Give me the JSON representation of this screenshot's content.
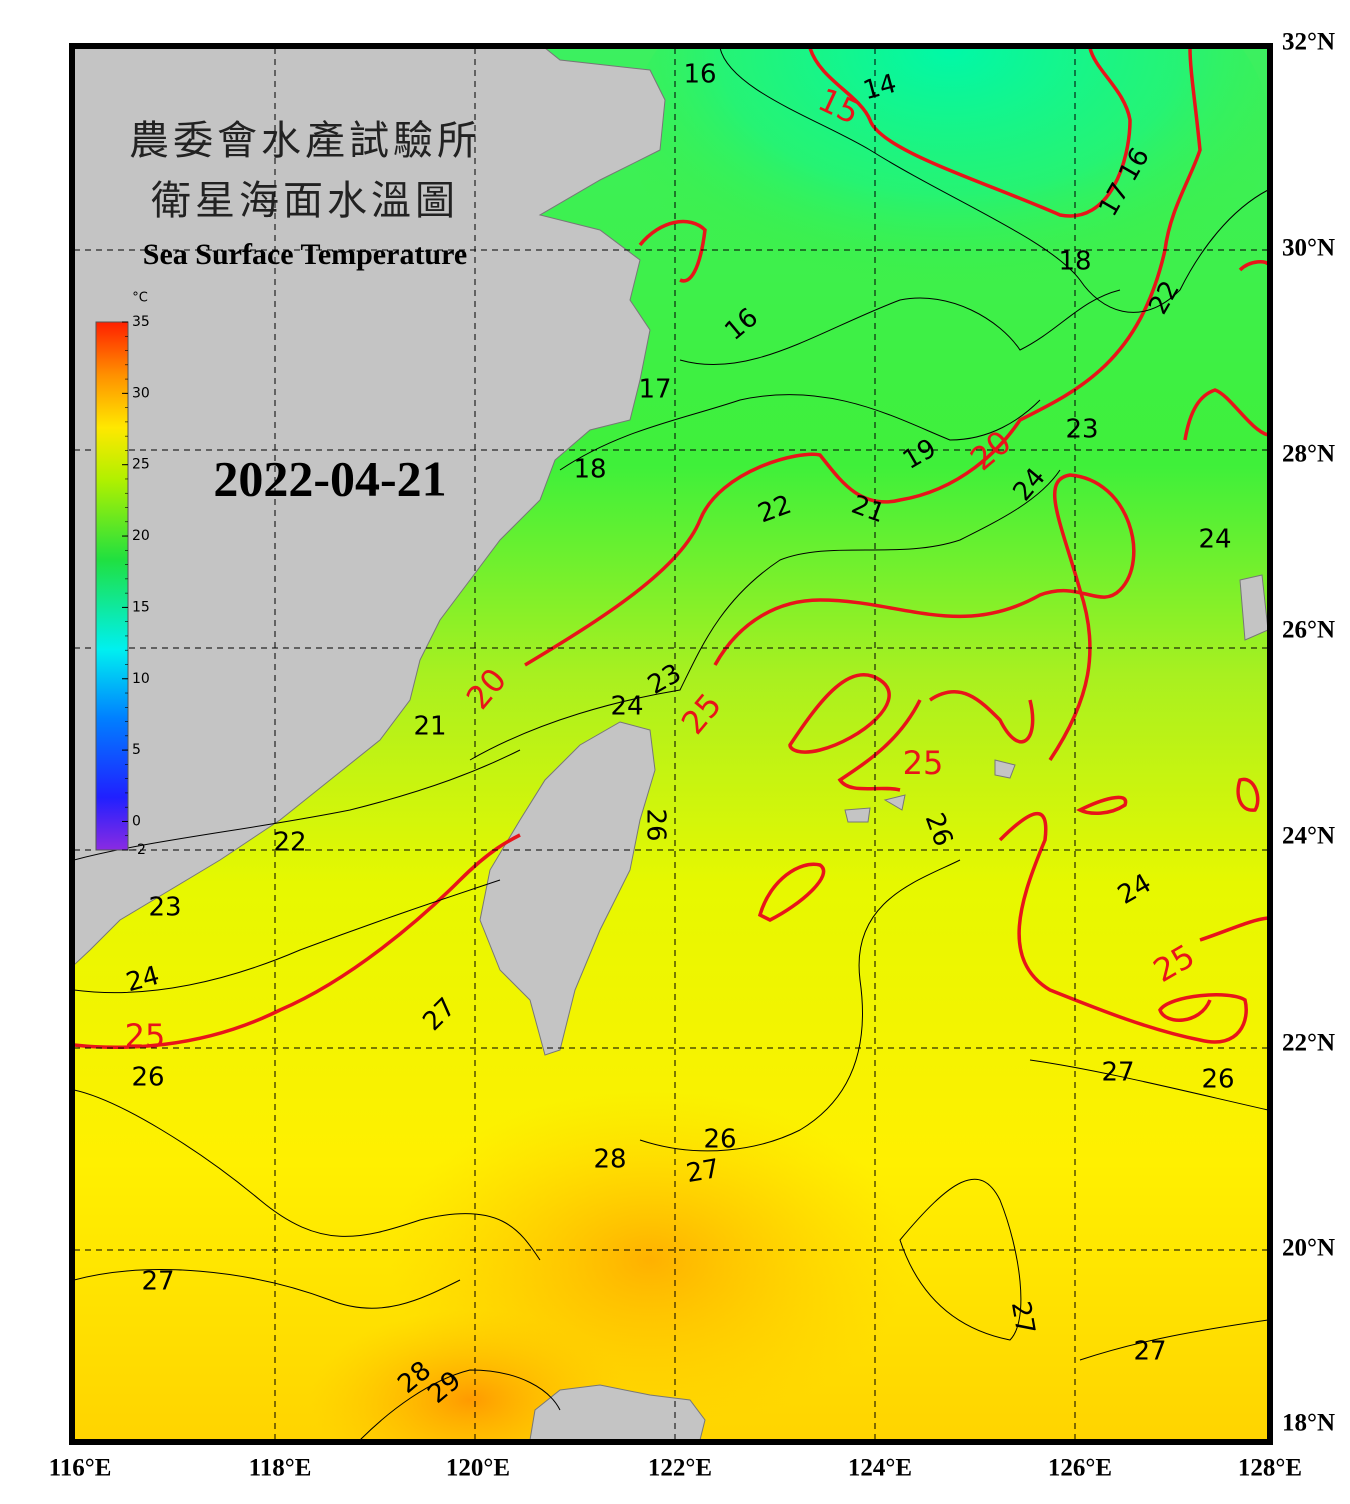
{
  "header": {
    "title_zh_1": "農委會水產試驗所",
    "title_zh_2": "衛星海面水溫圖",
    "title_en": "Sea Surface Temperature",
    "date": "2022-04-21"
  },
  "colorbar": {
    "unit": "°C",
    "range": [
      -2,
      35
    ],
    "ticks": [
      35,
      30,
      25,
      20,
      15,
      10,
      5,
      0,
      -2
    ]
  },
  "axes": {
    "lon_labels": [
      "116°E",
      "118°E",
      "120°E",
      "122°E",
      "124°E",
      "126°E",
      "128°E"
    ],
    "lat_labels": [
      "32°N",
      "30°N",
      "28°N",
      "26°N",
      "24°N",
      "22°N",
      "20°N",
      "18°N"
    ]
  },
  "contour_labels": {
    "black": [
      "16",
      "14",
      "17",
      "16",
      "18",
      "22",
      "16",
      "17",
      "18",
      "19",
      "23",
      "24",
      "22",
      "21",
      "24",
      "23",
      "24",
      "21",
      "22",
      "26",
      "26",
      "24",
      "23",
      "24",
      "27",
      "26",
      "27",
      "26",
      "26",
      "28",
      "27",
      "27",
      "27",
      "27",
      "28",
      "29"
    ],
    "red": [
      "15",
      "20",
      "20",
      "25",
      "25",
      "25",
      "25"
    ]
  }
}
